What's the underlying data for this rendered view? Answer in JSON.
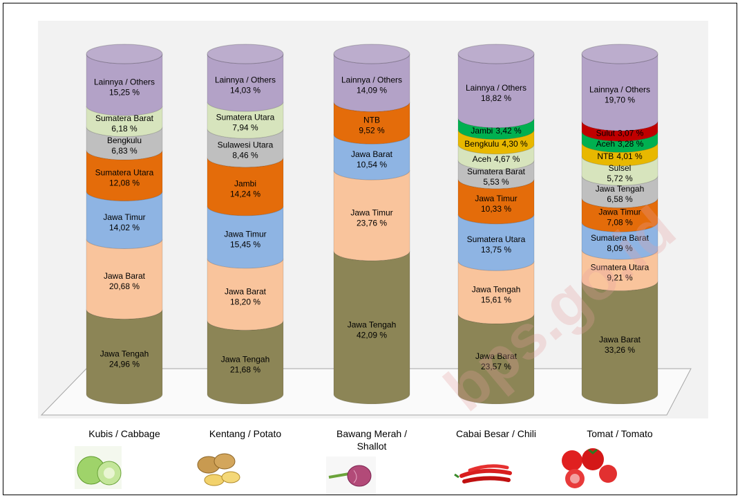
{
  "chart_data": {
    "type": "stacked-cylinder",
    "categories": [
      "Kubis / Cabbage",
      "Kentang / Potato",
      "Bawang Merah / Shallot",
      "Cabai Besar / Chili",
      "Tomat / Tomato"
    ],
    "ylim": [
      0,
      100
    ],
    "stacks": [
      [
        {
          "name": "Jawa Tengah",
          "color": "#8c8556",
          "value": 24.96,
          "value_label": "24,96 %"
        },
        {
          "name": "Jawa Barat",
          "color": "#f9c49c",
          "value": 20.68,
          "value_label": "20,68 %"
        },
        {
          "name": "Jawa Timur",
          "color": "#8eb4e3",
          "value": 14.02,
          "value_label": "14,02 %"
        },
        {
          "name": "Sumatera Utara",
          "color": "#e46c0a",
          "value": 12.08,
          "value_label": "12,08 %"
        },
        {
          "name": "Bengkulu",
          "color": "#bfbfbf",
          "value": 6.83,
          "value_label": "6,83 %"
        },
        {
          "name": "Sumatera Barat",
          "color": "#d7e4bd",
          "value": 6.18,
          "value_label": "6,18 %"
        },
        {
          "name": "Lainnya / Others",
          "color": "#b3a2c7",
          "value": 15.25,
          "value_label": "15,25 %"
        }
      ],
      [
        {
          "name": "Jawa Tengah",
          "color": "#8c8556",
          "value": 21.68,
          "value_label": "21,68 %"
        },
        {
          "name": "Jawa Barat",
          "color": "#f9c49c",
          "value": 18.2,
          "value_label": "18,20 %"
        },
        {
          "name": "Jawa Timur",
          "color": "#8eb4e3",
          "value": 15.45,
          "value_label": "15,45 %"
        },
        {
          "name": "Jambi",
          "color": "#e46c0a",
          "value": 14.24,
          "value_label": "14,24 %"
        },
        {
          "name": "Sulawesi Utara",
          "color": "#bfbfbf",
          "value": 8.46,
          "value_label": "8,46 %"
        },
        {
          "name": "Sumatera Utara",
          "color": "#d7e4bd",
          "value": 7.94,
          "value_label": "7,94 %"
        },
        {
          "name": "Lainnya / Others",
          "color": "#b3a2c7",
          "value": 14.03,
          "value_label": "14,03 %"
        }
      ],
      [
        {
          "name": "Jawa Tengah",
          "color": "#8c8556",
          "value": 42.09,
          "value_label": "42,09 %"
        },
        {
          "name": "Jawa Timur",
          "color": "#f9c49c",
          "value": 23.76,
          "value_label": "23,76 %"
        },
        {
          "name": "Jawa Barat",
          "color": "#8eb4e3",
          "value": 10.54,
          "value_label": "10,54 %"
        },
        {
          "name": "NTB",
          "color": "#e46c0a",
          "value": 9.52,
          "value_label": "9,52 %"
        },
        {
          "name": "Lainnya / Others",
          "color": "#b3a2c7",
          "value": 14.09,
          "value_label": "14,09 %"
        }
      ],
      [
        {
          "name": "Jawa Barat",
          "color": "#8c8556",
          "value": 23.57,
          "value_label": "23,57 %"
        },
        {
          "name": "Jawa Tengah",
          "color": "#f9c49c",
          "value": 15.61,
          "value_label": "15,61 %"
        },
        {
          "name": "Sumatera Utara",
          "color": "#8eb4e3",
          "value": 13.75,
          "value_label": "13,75 %"
        },
        {
          "name": "Jawa Timur",
          "color": "#e46c0a",
          "value": 10.33,
          "value_label": "10,33 %"
        },
        {
          "name": "Sumatera Barat",
          "color": "#bfbfbf",
          "value": 5.53,
          "value_label": "5,53 %"
        },
        {
          "name": "Aceh",
          "color": "#d7e4bd",
          "value": 4.67,
          "value_label": "4,67 %"
        },
        {
          "name": "Bengkulu",
          "color": "#e8b800",
          "value": 4.3,
          "value_label": "4,30 %"
        },
        {
          "name": "Jambi",
          "color": "#00b050",
          "value": 3.42,
          "value_label": "3,42 %"
        },
        {
          "name": "Lainnya / Others",
          "color": "#b3a2c7",
          "value": 18.82,
          "value_label": "18,82 %"
        }
      ],
      [
        {
          "name": "Jawa Barat",
          "color": "#8c8556",
          "value": 33.26,
          "value_label": "33,26 %"
        },
        {
          "name": "Sumatera Utara",
          "color": "#f9c49c",
          "value": 9.21,
          "value_label": "9,21 %"
        },
        {
          "name": "Sumatera Barat",
          "color": "#8eb4e3",
          "value": 8.09,
          "value_label": "8,09 %"
        },
        {
          "name": "Jawa Timur",
          "color": "#e46c0a",
          "value": 7.08,
          "value_label": "7,08 %"
        },
        {
          "name": "Jawa Tengah",
          "color": "#bfbfbf",
          "value": 6.58,
          "value_label": "6,58 %"
        },
        {
          "name": "Sulsel",
          "color": "#d7e4bd",
          "value": 5.72,
          "value_label": "5,72 %"
        },
        {
          "name": "NTB",
          "color": "#e8b800",
          "value": 4.01,
          "value_label": "4,01 %"
        },
        {
          "name": "Aceh",
          "color": "#00b050",
          "value": 3.28,
          "value_label": "3,28 %"
        },
        {
          "name": "Sulut",
          "color": "#c00000",
          "value": 3.07,
          "value_label": "3,07 %"
        },
        {
          "name": "Lainnya / Others",
          "color": "#b3a2c7",
          "value": 19.7,
          "value_label": "19,70 %"
        }
      ]
    ]
  },
  "watermark": "bps.go.id"
}
